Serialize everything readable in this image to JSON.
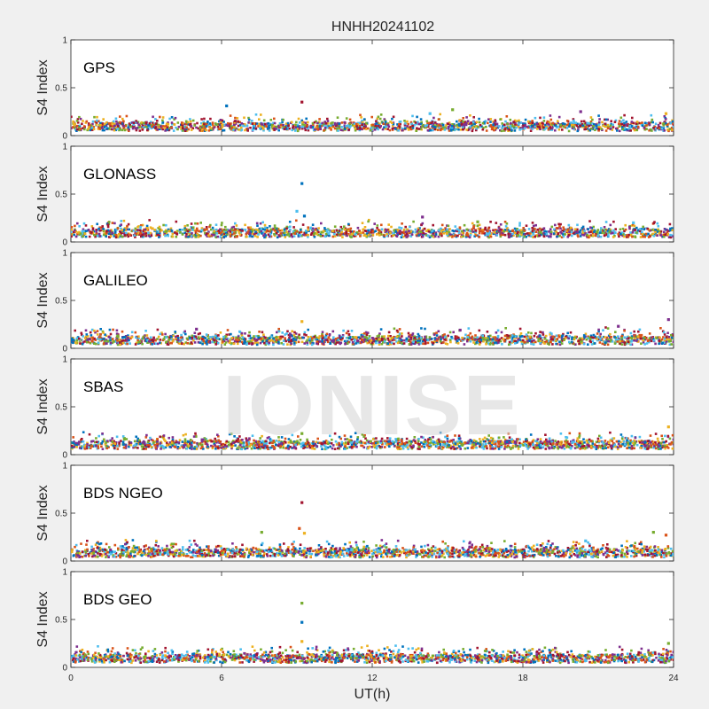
{
  "figure": {
    "title": "HNHH20241102",
    "watermark": "IONISE",
    "background": "#f0f0f0",
    "axes_background": "#ffffff"
  },
  "chart_data": {
    "type": "scatter",
    "xlabel": "UT(h)",
    "ylabel": "S4 Index",
    "xlim": [
      0,
      24
    ],
    "ylim": [
      0,
      1
    ],
    "x_ticks": [
      "0",
      "6",
      "12",
      "18",
      "24"
    ],
    "y_ticks": [
      "0",
      "0.5",
      "1"
    ],
    "grid": false,
    "series_colors": [
      "#0072BD",
      "#D95319",
      "#EDB120",
      "#7E2F8E",
      "#77AC30",
      "#4DBEEE",
      "#A2142F"
    ],
    "panels": [
      {
        "label": "GPS",
        "baseline": 0.09,
        "spikes": [
          [
            6.2,
            0.31,
            0
          ],
          [
            9.2,
            0.35,
            6
          ],
          [
            14.3,
            0.23,
            5
          ],
          [
            15.2,
            0.27,
            4
          ],
          [
            20.3,
            0.25,
            3
          ],
          [
            23.7,
            0.23,
            2
          ]
        ]
      },
      {
        "label": "GLONASS",
        "baseline": 0.09,
        "spikes": [
          [
            9.2,
            0.61,
            0
          ],
          [
            9.0,
            0.32,
            5
          ],
          [
            9.3,
            0.27,
            0
          ],
          [
            14.0,
            0.26,
            3
          ],
          [
            16.2,
            0.21,
            4
          ],
          [
            22.4,
            0.2,
            5
          ]
        ]
      },
      {
        "label": "GALILEO",
        "baseline": 0.08,
        "spikes": [
          [
            9.2,
            0.28,
            2
          ],
          [
            5.0,
            0.2,
            3
          ],
          [
            15.5,
            0.19,
            3
          ],
          [
            21.8,
            0.23,
            3
          ],
          [
            23.8,
            0.3,
            3
          ]
        ]
      },
      {
        "label": "SBAS",
        "baseline": 0.1,
        "spikes": [
          [
            9.2,
            0.22,
            4
          ],
          [
            23.8,
            0.29,
            2
          ]
        ]
      },
      {
        "label": "BDS NGEO",
        "baseline": 0.08,
        "spikes": [
          [
            9.2,
            0.61,
            6
          ],
          [
            9.1,
            0.34,
            1
          ],
          [
            7.6,
            0.3,
            4
          ],
          [
            9.3,
            0.29,
            2
          ],
          [
            20.5,
            0.21,
            5
          ],
          [
            23.2,
            0.3,
            4
          ],
          [
            23.7,
            0.27,
            1
          ]
        ]
      },
      {
        "label": "BDS GEO",
        "baseline": 0.09,
        "spikes": [
          [
            9.2,
            0.67,
            4
          ],
          [
            9.2,
            0.47,
            0
          ],
          [
            9.2,
            0.27,
            2
          ],
          [
            23.8,
            0.25,
            4
          ]
        ]
      }
    ]
  }
}
